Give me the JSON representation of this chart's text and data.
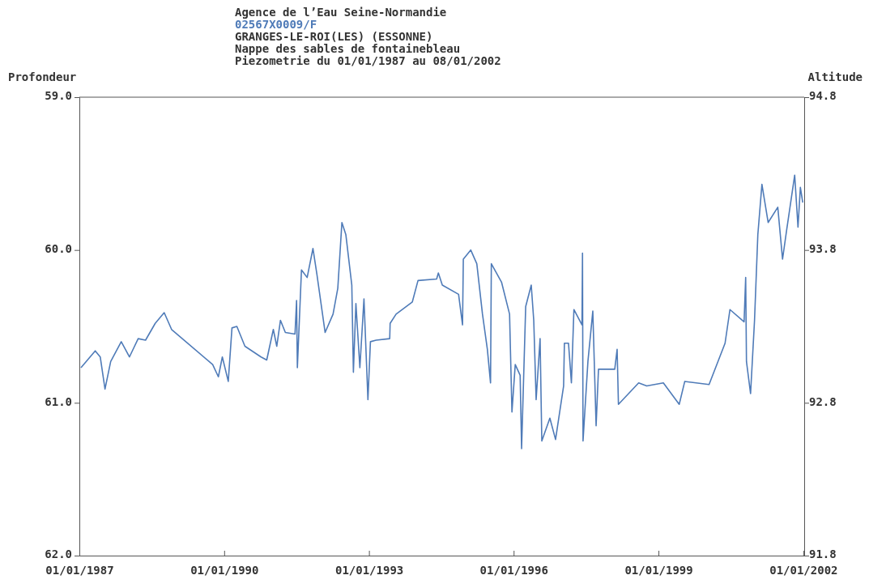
{
  "chart_data": {
    "type": "line",
    "title": "Agence de l’Eau Seine-Normandie",
    "subtitle": "02567X0009/F\nGRANGES-LE-ROI(LES) (ESSONNE)\nNappe des sables de fontainebleau\nPiezometrie du 01/01/1987 au 08/01/2002",
    "ylabel": "Profondeur",
    "y2label": "Altitude",
    "xlim": [
      "1987-01-01",
      "2002-01-08"
    ],
    "xticks": [
      {
        "value": "1987-01-01",
        "label": "01/01/1987"
      },
      {
        "value": "1990-01-01",
        "label": "01/01/1990"
      },
      {
        "value": "1993-01-01",
        "label": "01/01/1993"
      },
      {
        "value": "1996-01-01",
        "label": "01/01/1996"
      },
      {
        "value": "1999-01-01",
        "label": "01/01/1999"
      },
      {
        "value": "2002-01-01",
        "label": "01/01/2002"
      }
    ],
    "ylim": [
      62.0,
      59.0
    ],
    "yticks": [
      {
        "value": 59,
        "label": "59.0"
      },
      {
        "value": 60,
        "label": "60.0"
      },
      {
        "value": 61,
        "label": "61.0"
      },
      {
        "value": 62,
        "label": "62.0"
      }
    ],
    "y2lim": [
      91.8,
      94.8
    ],
    "y2ticks": [
      91.8,
      92.8,
      93.8,
      94.8
    ],
    "grid": false,
    "marker": "none",
    "line_style": "solid",
    "x": [
      "1987-01-13",
      "1987-05-01",
      "1987-06-08",
      "1987-07-14",
      "1987-08-26",
      "1987-11-14",
      "1988-01-15",
      "1988-03-21",
      "1988-05-16",
      "1988-07-28",
      "1988-10-04",
      "1988-11-29",
      "1989-10-06",
      "1989-11-18",
      "1989-12-18",
      "1990-02-01",
      "1990-03-01",
      "1990-04-07",
      "1990-06-07",
      "1990-10-07",
      "1990-11-19",
      "1991-01-08",
      "1991-02-03",
      "1991-03-03",
      "1991-04-09",
      "1991-06-21",
      "1991-07-03",
      "1991-07-09",
      "1991-08-09",
      "1991-09-21",
      "1991-11-04",
      "1991-12-04",
      "1992-02-04",
      "1992-04-04",
      "1992-05-10",
      "1992-06-10",
      "1992-07-10",
      "1992-08-24",
      "1992-09-05",
      "1992-09-24",
      "1992-10-24",
      "1992-11-24",
      "1992-12-24",
      "1993-01-12",
      "1993-02-24",
      "1993-06-07",
      "1993-06-10",
      "1993-07-25",
      "1993-11-25",
      "1994-01-07",
      "1994-05-28",
      "1994-06-10",
      "1994-07-10",
      "1994-11-10",
      "1994-12-10",
      "1994-12-16",
      "1995-02-10",
      "1995-03-28",
      "1995-05-10",
      "1995-06-16",
      "1995-07-10",
      "1995-07-16",
      "1995-10-01",
      "1995-12-01",
      "1995-12-19",
      "1996-01-13",
      "1996-02-19",
      "1996-03-01",
      "1996-04-01",
      "1996-05-13",
      "1996-06-01",
      "1996-06-19",
      "1996-07-19",
      "1996-08-01",
      "1996-10-01",
      "1996-11-13",
      "1997-01-13",
      "1997-01-19",
      "1997-02-19",
      "1997-03-13",
      "1997-04-01",
      "1997-06-01",
      "1997-06-05",
      "1997-06-09",
      "1997-07-16",
      "1997-08-22",
      "1997-09-16",
      "1997-10-04",
      "1998-02-04",
      "1998-02-22",
      "1998-03-04",
      "1998-08-04",
      "1998-10-04",
      "1999-02-07",
      "1999-06-07",
      "1999-07-19",
      "2000-01-19",
      "2000-05-19",
      "2000-06-25",
      "2000-10-10",
      "2000-10-22",
      "2000-10-28",
      "2000-11-28",
      "2000-12-28",
      "2001-01-22",
      "2001-02-22",
      "2001-04-10",
      "2001-06-22",
      "2001-07-28",
      "2001-08-28",
      "2001-10-28",
      "2001-11-22",
      "2001-12-10",
      "2001-12-28"
    ],
    "series": [
      {
        "color": "#4f7bb8",
        "values": [
          60.77,
          60.66,
          60.7,
          60.91,
          60.73,
          60.6,
          60.7,
          60.58,
          60.59,
          60.48,
          60.41,
          60.52,
          60.75,
          60.83,
          60.7,
          60.86,
          60.51,
          60.5,
          60.63,
          60.7,
          60.72,
          60.52,
          60.63,
          60.46,
          60.54,
          60.55,
          60.33,
          60.77,
          60.13,
          60.18,
          59.99,
          60.16,
          60.54,
          60.42,
          60.25,
          59.82,
          59.9,
          60.23,
          60.8,
          60.35,
          60.77,
          60.32,
          60.98,
          60.6,
          60.59,
          60.58,
          60.48,
          60.42,
          60.34,
          60.2,
          60.19,
          60.15,
          60.23,
          60.29,
          60.49,
          60.06,
          60.0,
          60.09,
          60.42,
          60.65,
          60.87,
          60.09,
          60.21,
          60.42,
          61.06,
          60.75,
          60.82,
          61.3,
          60.37,
          60.23,
          60.46,
          60.98,
          60.58,
          61.25,
          61.1,
          61.24,
          60.89,
          60.61,
          60.61,
          60.87,
          60.39,
          60.49,
          60.02,
          61.25,
          60.73,
          60.4,
          61.15,
          60.78,
          60.78,
          60.65,
          61.01,
          60.87,
          60.89,
          60.87,
          61.01,
          60.86,
          60.88,
          60.61,
          60.39,
          60.47,
          60.18,
          60.73,
          60.94,
          60.46,
          59.9,
          59.57,
          59.82,
          59.72,
          60.06,
          59.87,
          59.51,
          59.85,
          59.59,
          59.69
        ]
      }
    ]
  }
}
